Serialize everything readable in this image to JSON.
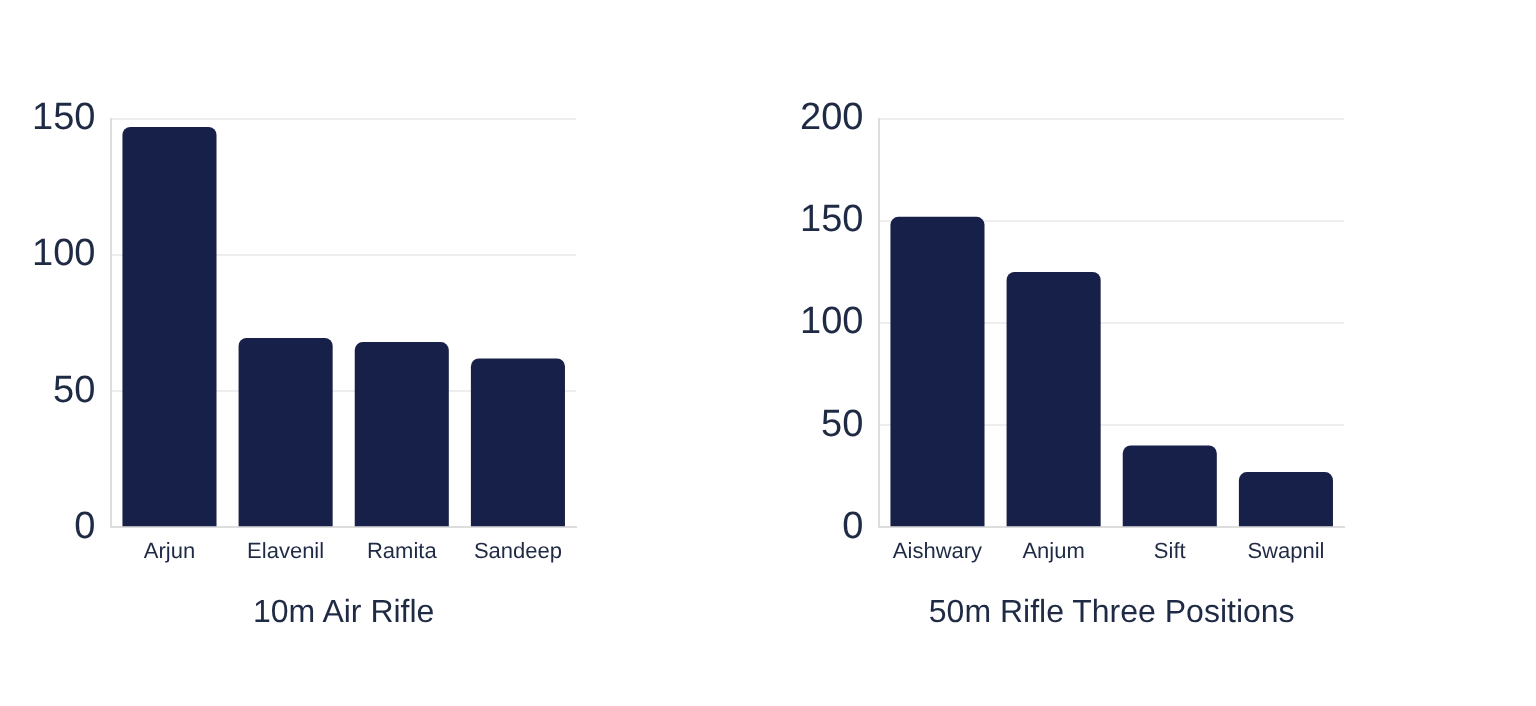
{
  "chart_data": [
    {
      "type": "bar",
      "xlabel": "10m Air Rifle",
      "categories": [
        "Arjun",
        "Elavenil",
        "Ramita",
        "Sandeep"
      ],
      "values": [
        147,
        69.5,
        68,
        62
      ],
      "color": "#172048",
      "ylim": [
        0,
        150
      ],
      "yticks": [
        0,
        50,
        100,
        150
      ],
      "grid": "y"
    },
    {
      "type": "bar",
      "xlabel": "50m Rifle Three Positions",
      "categories": [
        "Aishwary",
        "Anjum",
        "Sift",
        "Swapnil"
      ],
      "values": [
        152,
        125,
        40,
        27
      ],
      "color": "#172048",
      "ylim": [
        0,
        200
      ],
      "yticks": [
        0,
        50,
        100,
        150,
        200
      ],
      "grid": "y"
    }
  ]
}
